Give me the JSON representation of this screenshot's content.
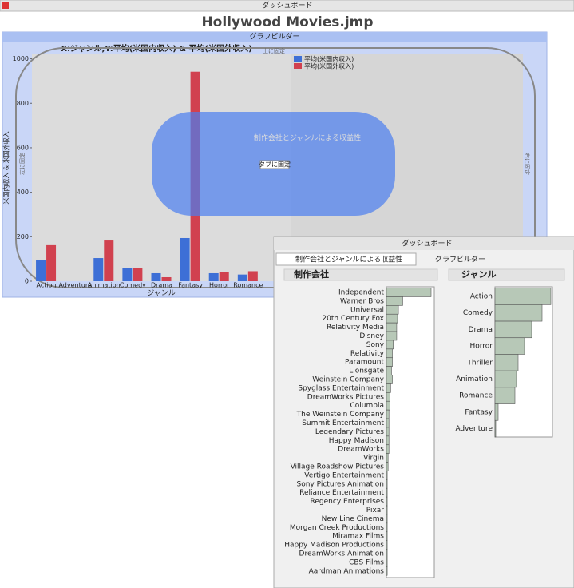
{
  "window_title": "ダッシュボード",
  "title": "Hollywood Movies.jmp",
  "graph_builder": {
    "header": "グラフビルダー",
    "title": "X:ジャンル,Y:平均(米国内収入) & 平均(米国外収入)",
    "x_label": "ジャンル",
    "y_label": "米国内収入 & 米国外収入",
    "categories": [
      "Action",
      "Adventure",
      "Animation",
      "Comedy",
      "Drama",
      "Fantasy",
      "Horror",
      "Romance"
    ],
    "ylim": [
      0,
      1020
    ],
    "yticks": [
      0,
      200,
      400,
      600,
      800,
      1000
    ],
    "series": [
      {
        "name": "平均(米国内収入)",
        "color": "#3d6fd6",
        "values": [
          94,
          null,
          104,
          58,
          36,
          194,
          36,
          30
        ]
      },
      {
        "name": "平均(米国外収入)",
        "color": "#d1414f",
        "values": [
          162,
          null,
          183,
          61,
          18,
          942,
          43,
          45
        ]
      }
    ]
  },
  "dock_labels": {
    "top": "上に固定",
    "left": "左に固定",
    "right": "右に固定",
    "tab": "タブに固定",
    "overlay": "制作会社とジャンルによる収益性"
  },
  "popup": {
    "window_title": "ダッシュボード",
    "tabs": [
      "制作会社とジャンルによる収益性",
      "グラフビルダー"
    ],
    "panels": [
      {
        "title": "制作会社",
        "categories": [
          "Independent",
          "Warner Bros",
          "Universal",
          "20th Century Fox",
          "Relativity Media",
          "Disney",
          "Sony",
          "Relativity",
          "Paramount",
          "Lionsgate",
          "Weinstein Company",
          "Spyglass Entertainment",
          "DreamWorks Pictures",
          "Columbia",
          "The Weinstein Company",
          "Summit Entertainment",
          "Legendary Pictures",
          "Happy Madison",
          "DreamWorks",
          "Virgin",
          "Village Roadshow Pictures",
          "Vertigo Entertainment",
          "Sony Pictures Animation",
          "Reliance Entertainment",
          "Regency Enterprises",
          "Pixar",
          "New Line Cinema",
          "Morgan Creek Productions",
          "Miramax Films",
          "Happy Madison Productions",
          "DreamWorks Animation",
          "CBS Films",
          "Aardman Animations"
        ],
        "values": [
          52,
          19,
          14,
          13,
          12,
          12,
          8,
          7,
          7,
          6,
          7,
          5,
          4,
          4,
          3,
          3,
          3,
          3,
          3,
          2,
          2,
          1,
          1,
          1,
          1,
          1,
          1,
          1,
          1,
          1,
          1,
          1,
          1
        ]
      },
      {
        "title": "ジャンル",
        "categories": [
          "Action",
          "Comedy",
          "Drama",
          "Horror",
          "Thriller",
          "Animation",
          "Romance",
          "Fantasy",
          "Adventure"
        ],
        "values": [
          70,
          59,
          46,
          37,
          29,
          27,
          25,
          4,
          1
        ]
      }
    ]
  }
}
